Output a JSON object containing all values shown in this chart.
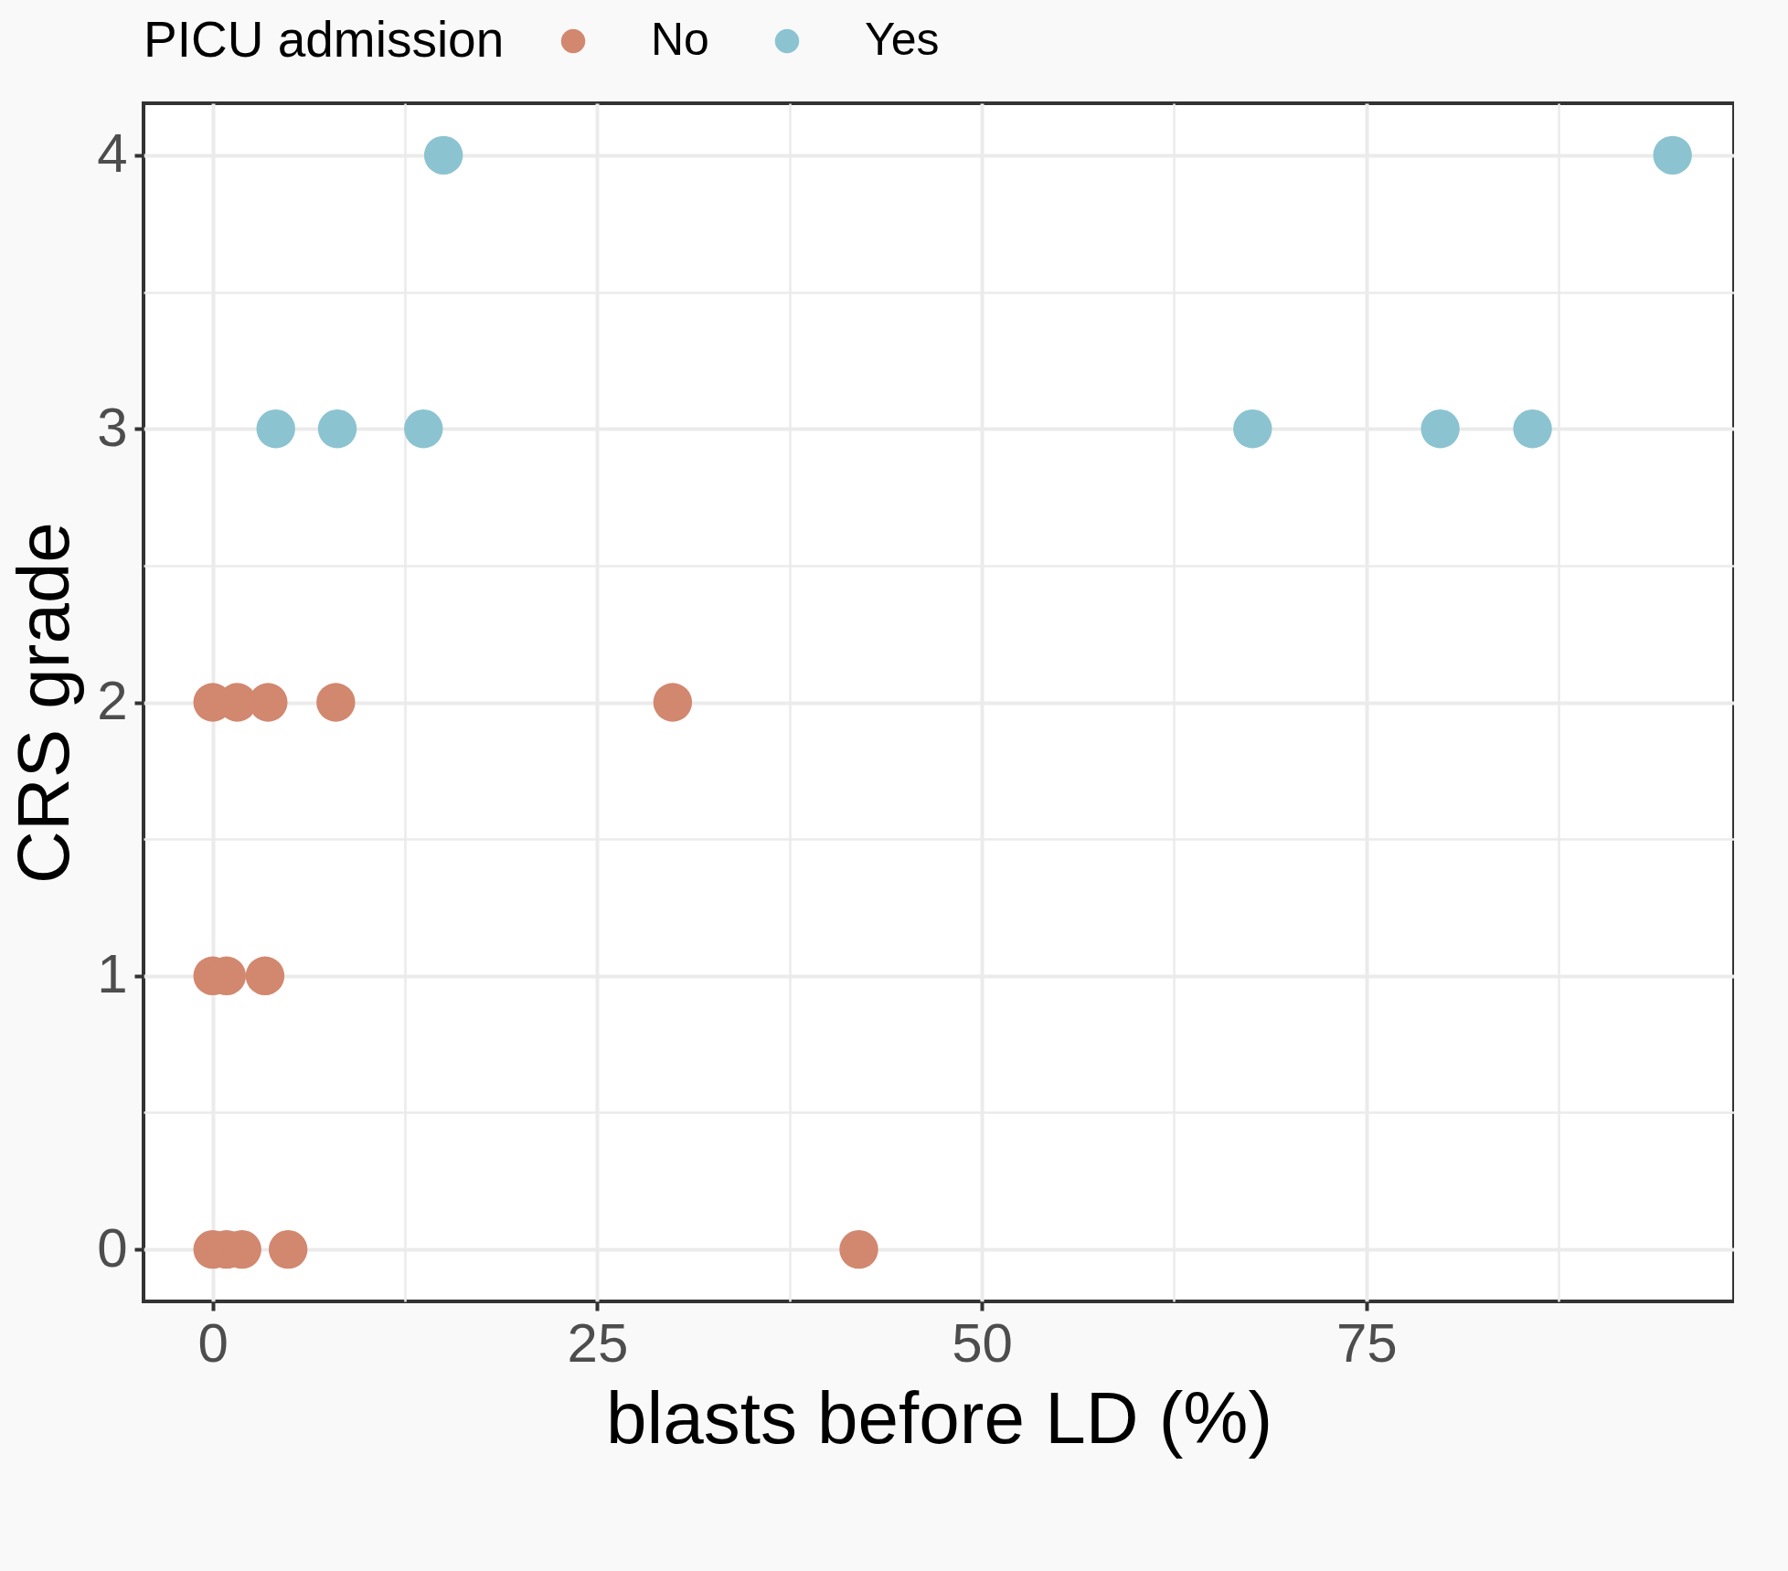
{
  "chart_data": {
    "type": "scatter",
    "xlabel": "blasts before LD (%)",
    "ylabel": "CRS grade",
    "legend_title": "PICU admission",
    "xlim": [
      -4.5,
      98.9
    ],
    "ylim": [
      -0.19,
      4.19
    ],
    "xticks": [
      0,
      25,
      50,
      75
    ],
    "yticks": [
      0,
      1,
      2,
      3,
      4
    ],
    "grid": true,
    "legend": "top",
    "marker": "circle",
    "series": [
      {
        "name": "No",
        "color": "#d2876f",
        "x": [
          0,
          1.6,
          3.6,
          8.0,
          29.9,
          0,
          0.9,
          3.4,
          0,
          0.9,
          1.9,
          4.9,
          42.0
        ],
        "values": [
          2,
          2,
          2,
          2,
          2,
          1,
          1,
          1,
          0,
          0,
          0,
          0,
          0
        ]
      },
      {
        "name": "Yes",
        "color": "#8bc3d1",
        "x": [
          15.0,
          94.9,
          4.1,
          8.1,
          13.7,
          67.6,
          79.8,
          85.8
        ],
        "values": [
          4,
          4,
          3,
          3,
          3,
          3,
          3,
          3
        ]
      }
    ]
  }
}
